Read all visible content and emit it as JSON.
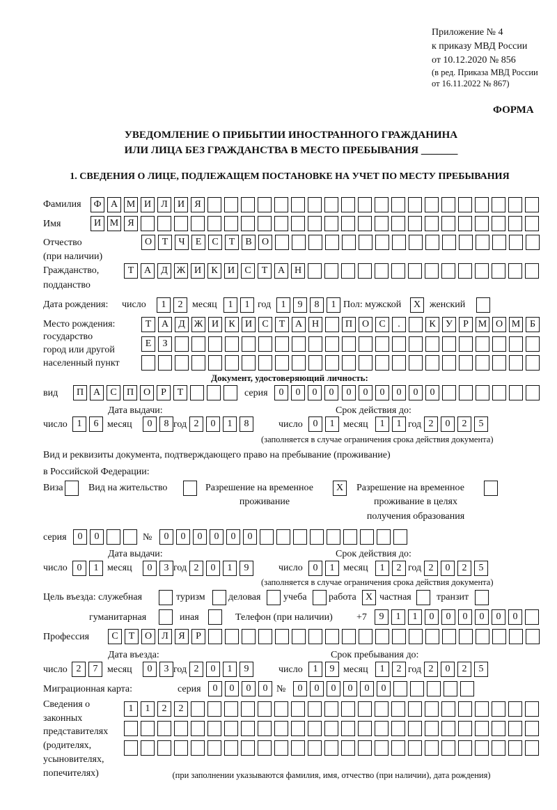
{
  "header": {
    "appendix": "Приложение № 4",
    "order": "к приказу МВД России",
    "order_date": "от 10.12.2020 № 856",
    "edition_1": "(в ред. Приказа МВД России",
    "edition_2": "от 16.11.2022 № 867)",
    "form_label": "ФОРМА",
    "title_1": "УВЕДОМЛЕНИЕ О ПРИБЫТИИ ИНОСТРАННОГО ГРАЖДАНИНА",
    "title_2": "ИЛИ ЛИЦА БЕЗ ГРАЖДАНСТВА В МЕСТО ПРЕБЫВАНИЯ _______",
    "section_1": "1. СВЕДЕНИЯ О ЛИЦЕ, ПОДЛЕЖАЩЕМ ПОСТАНОВКЕ НА УЧЕТ ПО МЕСТУ ПРЕБЫВАНИЯ"
  },
  "labels": {
    "surname": "Фамилия",
    "name": "Имя",
    "patronymic_1": "Отчество",
    "patronymic_2": "(при наличии)",
    "citizenship_1": "Гражданство,",
    "citizenship_2": "подданство",
    "birth_date": "Дата рождения:",
    "day": "число",
    "month": "месяц",
    "year": "год",
    "sex": "Пол: мужской",
    "female": "женский",
    "birth_place_1": "Место рождения:",
    "birth_place_2": "государство",
    "birth_place_3": "город или другой",
    "birth_place_4": "населенный пункт",
    "id_doc": "Документ, удостоверяющий личность:",
    "kind": "вид",
    "series": "серия",
    "number": "№",
    "issue_date": "Дата выдачи:",
    "valid_until": "Срок действия до:",
    "validity_note": "(заполняется в случае ограничения срока действия документа)",
    "right_doc_1": "Вид и реквизиты документа, подтверждающего право на пребывание (проживание)",
    "right_doc_2": "в Российской Федерации:",
    "visa": "Виза",
    "residence": "Вид на жительство",
    "temp_1": "Разрешение на временное",
    "temp_2": "проживание",
    "temp_edu_1": "Разрешение на временное",
    "temp_edu_2": "проживание в целях",
    "temp_edu_3": "получения образования",
    "purpose": "Цель въезда: служебная",
    "tourism": "туризм",
    "business": "деловая",
    "study": "учеба",
    "work": "работа",
    "private": "частная",
    "transit": "транзит",
    "humanitarian": "гуманитарная",
    "other": "иная",
    "phone": "Телефон (при наличии)",
    "phone_prefix": "+7",
    "profession": "Профессия",
    "entry_date": "Дата въезда:",
    "stay_until": "Срок пребывания до:",
    "migration_card": "Миграционная карта:",
    "reps_1": "Сведения о",
    "reps_2": "законных",
    "reps_3": "представителях",
    "reps_4": "(родителях,",
    "reps_5": "усыновителях,",
    "reps_6": "попечителях)",
    "reps_note": "(при заполнении указываются фамилия, имя, отчество (при наличии), дата рождения)"
  },
  "fields": {
    "surname": "ФАМИЛИЯ",
    "name": "ИМЯ",
    "patronymic": "ОТЧЕСТВО",
    "citizenship": "ТАДЖИКИСТАН",
    "birth_day": "12",
    "birth_month": "11",
    "birth_year": "1981",
    "sex_male": "X",
    "sex_female": "",
    "birth_place_1": "ТАДЖИКИСТАН ПОС. КУРМОМБ",
    "birth_place_2": "ЕЗ",
    "birth_place_3": "",
    "id_kind": "ПАСПОРТ",
    "id_series": "0000",
    "id_number": "000000",
    "id_issue_day": "16",
    "id_issue_month": "08",
    "id_issue_year": "2018",
    "id_valid_day": "01",
    "id_valid_month": "11",
    "id_valid_year": "2025",
    "doc_visa": "",
    "doc_residence": "",
    "doc_temp": "X",
    "doc_temp_edu": "",
    "doc_series": "00",
    "doc_number": "000000",
    "doc_issue_day": "01",
    "doc_issue_month": "03",
    "doc_issue_year": "2019",
    "doc_valid_day": "01",
    "doc_valid_month": "12",
    "doc_valid_year": "2025",
    "purpose_service": "",
    "purpose_tourism": "",
    "purpose_business": "",
    "purpose_study": "",
    "purpose_work": "X",
    "purpose_private": "",
    "purpose_transit": "",
    "purpose_humanitarian": "",
    "purpose_other": "",
    "phone": "911000000",
    "profession": "СТОЛЯР",
    "entry_day": "27",
    "entry_month": "03",
    "entry_year": "2019",
    "stay_day": "19",
    "stay_month": "12",
    "stay_year": "2025",
    "mc_series": "0000",
    "mc_number": "000000",
    "reps_1": "1122",
    "reps_2": "",
    "reps_3": ""
  }
}
